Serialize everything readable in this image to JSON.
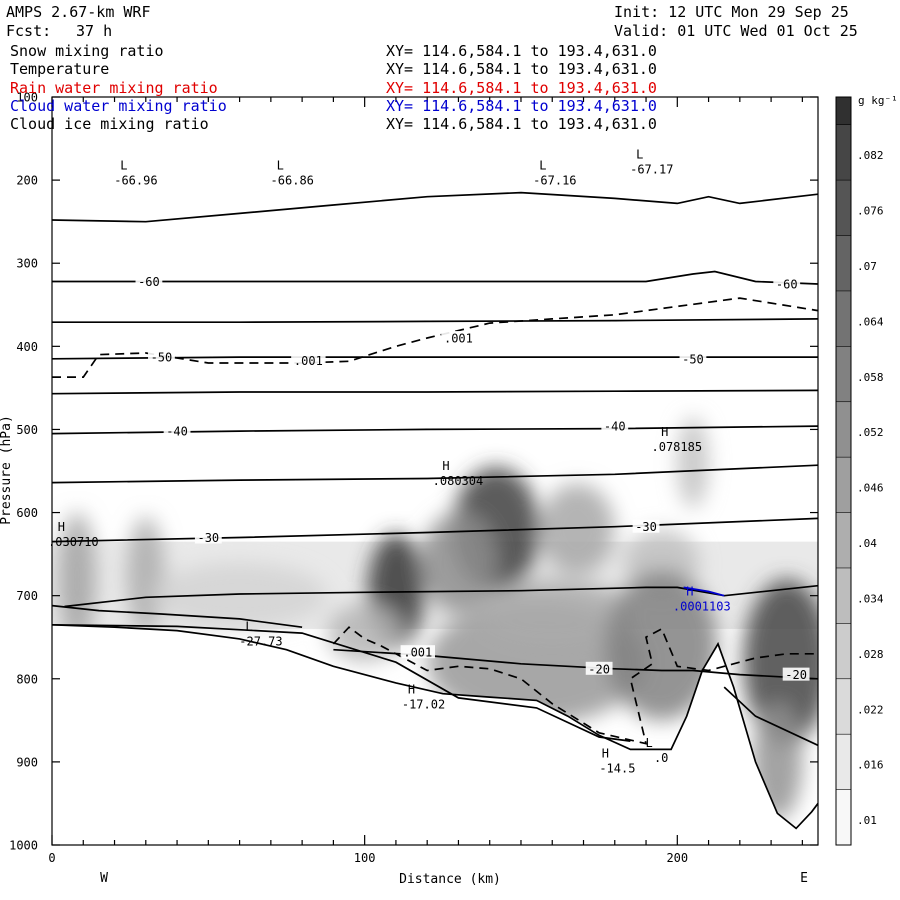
{
  "header": {
    "model": "AMPS 2.67-km WRF",
    "forecast_label": "Fcst:",
    "forecast_hours": "37 h",
    "init": "Init: 12 UTC Mon 29 Sep 25",
    "valid": "Valid: 01 UTC Wed 01 Oct 25"
  },
  "fields": [
    {
      "name": "Snow mixing ratio",
      "xy": "XY= 114.6,584.1 to 193.4,631.0",
      "color": "#000000"
    },
    {
      "name": "Temperature",
      "xy": "XY= 114.6,584.1 to 193.4,631.0",
      "color": "#000000"
    },
    {
      "name": "Rain water mixing ratio",
      "xy": "XY= 114.6,584.1 to 193.4,631.0",
      "color": "#e00000"
    },
    {
      "name": "Cloud water mixing ratio",
      "xy": "XY= 114.6,584.1 to 193.4,631.0",
      "color": "#0000d0"
    },
    {
      "name": "Cloud ice mixing ratio",
      "xy": "XY= 114.6,584.1 to 193.4,631.0",
      "color": "#000000"
    }
  ],
  "chart_data": {
    "type": "heatmap",
    "xlabel": "Distance (km)",
    "ylabel": "Pressure (hPa)",
    "xlim": [
      0,
      245
    ],
    "ylim": [
      1000,
      100
    ],
    "x_ticks": [
      0,
      100,
      200
    ],
    "y_ticks": [
      100,
      200,
      300,
      400,
      500,
      600,
      700,
      800,
      900,
      1000
    ],
    "x_end_labels": {
      "left": "W",
      "right": "E"
    },
    "colorbar": {
      "units": "g kg⁻¹",
      "ticks": [
        ".01",
        ".016",
        ".022",
        ".028",
        ".034",
        ".04",
        ".046",
        ".052",
        ".058",
        ".064",
        ".07",
        ".076",
        ".082"
      ],
      "tick_values": [
        0.01,
        0.016,
        0.022,
        0.028,
        0.034,
        0.04,
        0.046,
        0.052,
        0.058,
        0.064,
        0.07,
        0.076,
        0.082
      ],
      "range": [
        0.007,
        0.088
      ]
    },
    "snow_blobs": [
      {
        "x": 8,
        "p": 680,
        "rx": 6,
        "rp": 80,
        "v": 0.042
      },
      {
        "x": 30,
        "p": 675,
        "rx": 6,
        "rp": 70,
        "v": 0.038
      },
      {
        "x": 60,
        "p": 700,
        "rx": 28,
        "rp": 40,
        "v": 0.022
      },
      {
        "x": 110,
        "p": 695,
        "rx": 9,
        "rp": 70,
        "v": 0.085
      },
      {
        "x": 100,
        "p": 745,
        "rx": 12,
        "rp": 35,
        "v": 0.034
      },
      {
        "x": 142,
        "p": 620,
        "rx": 14,
        "rp": 75,
        "v": 0.082
      },
      {
        "x": 130,
        "p": 660,
        "rx": 12,
        "rp": 60,
        "v": 0.05
      },
      {
        "x": 168,
        "p": 620,
        "rx": 12,
        "rp": 55,
        "v": 0.04
      },
      {
        "x": 155,
        "p": 780,
        "rx": 35,
        "rp": 75,
        "v": 0.046
      },
      {
        "x": 160,
        "p": 720,
        "rx": 25,
        "rp": 40,
        "v": 0.038
      },
      {
        "x": 205,
        "p": 540,
        "rx": 5,
        "rp": 55,
        "v": 0.03
      },
      {
        "x": 195,
        "p": 660,
        "rx": 12,
        "rp": 40,
        "v": 0.03
      },
      {
        "x": 195,
        "p": 760,
        "rx": 18,
        "rp": 90,
        "v": 0.055
      },
      {
        "x": 235,
        "p": 780,
        "rx": 14,
        "rp": 100,
        "v": 0.08
      },
      {
        "x": 232,
        "p": 900,
        "rx": 8,
        "rp": 70,
        "v": 0.048
      }
    ],
    "snow_background": {
      "p_top": 635,
      "p_bottom": 740,
      "v": 0.013
    },
    "terrain_profile": [
      [
        0,
        735
      ],
      [
        20,
        738
      ],
      [
        40,
        742
      ],
      [
        60,
        752
      ],
      [
        75,
        765
      ],
      [
        90,
        785
      ],
      [
        110,
        805
      ],
      [
        125,
        818
      ],
      [
        140,
        822
      ],
      [
        155,
        826
      ],
      [
        165,
        845
      ],
      [
        175,
        868
      ],
      [
        185,
        885
      ],
      [
        198,
        885
      ],
      [
        203,
        845
      ],
      [
        208,
        790
      ],
      [
        213,
        758
      ],
      [
        218,
        810
      ],
      [
        225,
        900
      ],
      [
        232,
        962
      ],
      [
        238,
        980
      ],
      [
        243,
        960
      ],
      [
        245,
        950
      ]
    ],
    "temperature_contours": [
      {
        "label": "",
        "points": [
          [
            0,
            248
          ],
          [
            30,
            250
          ],
          [
            60,
            240
          ],
          [
            90,
            230
          ],
          [
            120,
            220
          ],
          [
            150,
            215
          ],
          [
            180,
            222
          ],
          [
            200,
            228
          ],
          [
            210,
            220
          ],
          [
            220,
            228
          ],
          [
            245,
            217
          ]
        ]
      },
      {
        "label": "-60",
        "points": [
          [
            0,
            322
          ],
          [
            60,
            322
          ],
          [
            120,
            322
          ],
          [
            190,
            322
          ],
          [
            205,
            313
          ],
          [
            212,
            310
          ],
          [
            225,
            322
          ],
          [
            245,
            325
          ]
        ],
        "label_at": [
          [
            31,
            322
          ],
          [
            235,
            325
          ]
        ]
      },
      {
        "label": "",
        "points": [
          [
            0,
            371
          ],
          [
            60,
            371
          ],
          [
            120,
            370
          ],
          [
            180,
            369
          ],
          [
            245,
            367
          ]
        ]
      },
      {
        "label": "-50",
        "points": [
          [
            0,
            415
          ],
          [
            60,
            413
          ],
          [
            120,
            413
          ],
          [
            180,
            413
          ],
          [
            245,
            413
          ]
        ],
        "label_at": [
          [
            35,
            413
          ],
          [
            205,
            415
          ]
        ]
      },
      {
        "label": "",
        "points": [
          [
            0,
            457
          ],
          [
            60,
            455
          ],
          [
            120,
            455
          ],
          [
            180,
            454
          ],
          [
            245,
            453
          ]
        ]
      },
      {
        "label": "-40",
        "points": [
          [
            0,
            505
          ],
          [
            60,
            502
          ],
          [
            120,
            500
          ],
          [
            180,
            499
          ],
          [
            245,
            496
          ]
        ],
        "label_at": [
          [
            40,
            502
          ],
          [
            180,
            496
          ]
        ]
      },
      {
        "label": "",
        "points": [
          [
            0,
            564
          ],
          [
            60,
            561
          ],
          [
            120,
            559
          ],
          [
            180,
            554
          ],
          [
            245,
            543
          ]
        ]
      },
      {
        "label": "-30",
        "points": [
          [
            0,
            635
          ],
          [
            60,
            630
          ],
          [
            120,
            624
          ],
          [
            180,
            617
          ],
          [
            245,
            607
          ]
        ],
        "label_at": [
          [
            50,
            630
          ],
          [
            190,
            617
          ]
        ]
      },
      {
        "label": "",
        "points": [
          [
            4,
            713
          ],
          [
            30,
            702
          ],
          [
            60,
            698
          ],
          [
            100,
            696
          ],
          [
            150,
            694
          ],
          [
            190,
            690
          ],
          [
            200,
            690
          ],
          [
            215,
            700
          ],
          [
            245,
            688
          ]
        ]
      },
      {
        "label": "-20",
        "points": [
          [
            90,
            765
          ],
          [
            120,
            772
          ],
          [
            150,
            782
          ],
          [
            180,
            788
          ],
          [
            195,
            790
          ],
          [
            205,
            790
          ],
          [
            220,
            795
          ],
          [
            245,
            800
          ]
        ],
        "label_at": [
          [
            175,
            788
          ],
          [
            238,
            795
          ]
        ]
      },
      {
        "label": "",
        "points": [
          [
            0,
            712
          ],
          [
            15,
            718
          ],
          [
            35,
            722
          ],
          [
            60,
            728
          ],
          [
            80,
            738
          ]
        ]
      },
      {
        "label": "",
        "points": [
          [
            0,
            735
          ],
          [
            40,
            737
          ],
          [
            80,
            745
          ],
          [
            110,
            780
          ],
          [
            130,
            823
          ],
          [
            155,
            835
          ],
          [
            175,
            870
          ],
          [
            185,
            875
          ]
        ]
      },
      {
        "label": "",
        "points": [
          [
            215,
            810
          ],
          [
            225,
            845
          ],
          [
            245,
            880
          ]
        ]
      }
    ],
    "rain_or_ice_dashed": [
      {
        "label": ".001",
        "points": [
          [
            0,
            437
          ],
          [
            10,
            437
          ],
          [
            15,
            410
          ],
          [
            30,
            408
          ],
          [
            50,
            420
          ],
          [
            80,
            420
          ],
          [
            95,
            418
          ],
          [
            110,
            400
          ],
          [
            120,
            390
          ],
          [
            140,
            372
          ],
          [
            160,
            367
          ],
          [
            180,
            362
          ],
          [
            200,
            352
          ],
          [
            220,
            342
          ],
          [
            245,
            357
          ]
        ],
        "label_at": [
          [
            82,
            417
          ],
          [
            130,
            390
          ]
        ]
      },
      {
        "label": ".001",
        "points": [
          [
            90,
            758
          ],
          [
            95,
            738
          ],
          [
            100,
            752
          ],
          [
            105,
            760
          ],
          [
            110,
            770
          ],
          [
            120,
            790
          ],
          [
            130,
            785
          ],
          [
            140,
            788
          ],
          [
            150,
            800
          ],
          [
            160,
            830
          ],
          [
            175,
            865
          ],
          [
            190,
            878
          ],
          [
            185,
            800
          ],
          [
            192,
            782
          ],
          [
            190,
            750
          ],
          [
            195,
            740
          ],
          [
            200,
            785
          ],
          [
            210,
            790
          ],
          [
            225,
            775
          ],
          [
            235,
            770
          ],
          [
            245,
            770
          ]
        ],
        "label_at": [
          [
            117,
            768
          ]
        ]
      }
    ],
    "cloud_water_contours": [
      {
        "points": [
          [
            202,
            690
          ],
          [
            210,
            695
          ],
          [
            215,
            700
          ]
        ],
        "color": "#0000d0"
      }
    ],
    "extrema": [
      {
        "kind": "L",
        "value": "-66.96",
        "x": 23,
        "p": 187
      },
      {
        "kind": "L",
        "value": "-66.86",
        "x": 73,
        "p": 187
      },
      {
        "kind": "L",
        "value": "-67.16",
        "x": 157,
        "p": 187
      },
      {
        "kind": "L",
        "value": "-67.17",
        "x": 188,
        "p": 174
      },
      {
        "kind": "H",
        "value": ".030710",
        "x": 3,
        "p": 622
      },
      {
        "kind": "H",
        "value": ".080304",
        "x": 126,
        "p": 549
      },
      {
        "kind": "H",
        "value": ".078185",
        "x": 196,
        "p": 508
      },
      {
        "kind": "H",
        "value": ".0001103",
        "x": 204,
        "p": 700,
        "color": "#0000d0"
      },
      {
        "kind": "L",
        "value": "-27.73",
        "x": 63,
        "p": 742
      },
      {
        "kind": "H",
        "value": "-17.02",
        "x": 115,
        "p": 818
      },
      {
        "kind": "H",
        "value": "-14.5",
        "x": 177,
        "p": 895
      },
      {
        "kind": "L",
        "value": ".0",
        "x": 191,
        "p": 882
      }
    ]
  }
}
